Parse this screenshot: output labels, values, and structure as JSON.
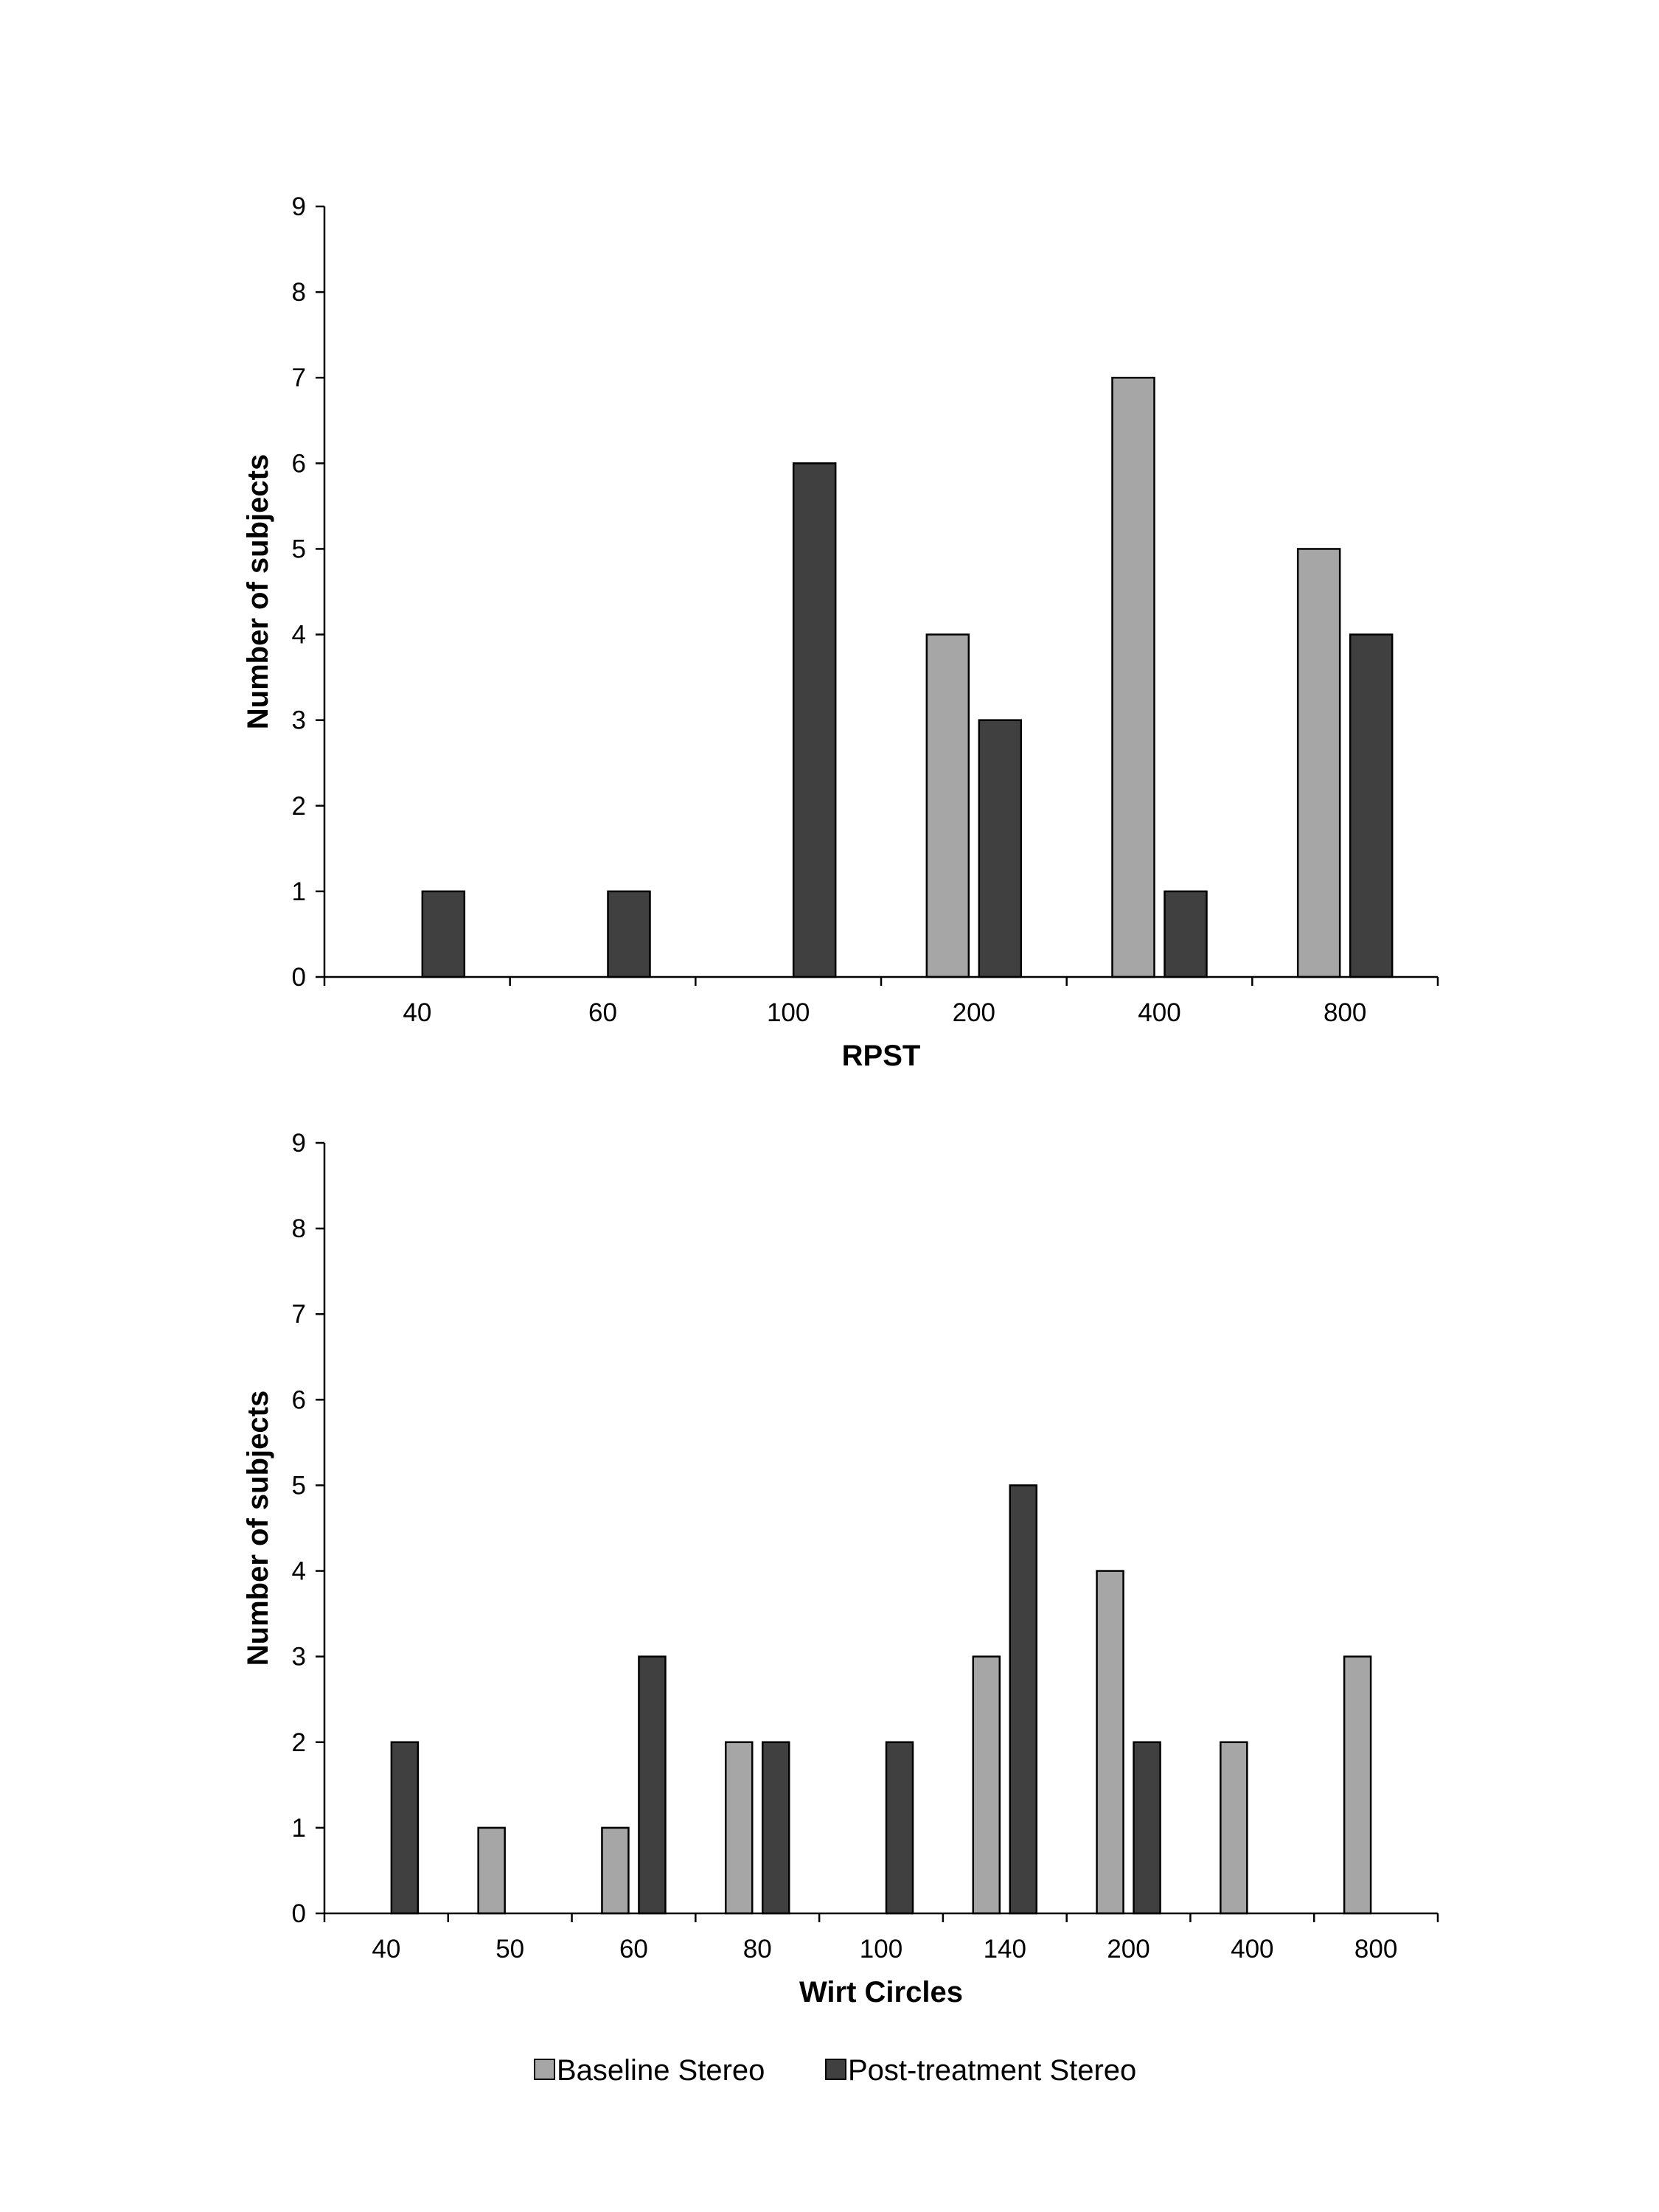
{
  "colors": {
    "baseline": "#a6a6a6",
    "post": "#404040",
    "axis": "#000000"
  },
  "legend": {
    "items": [
      {
        "label": "Baseline Stereo",
        "color": "#a6a6a6"
      },
      {
        "label": "Post-treatment Stereo",
        "color": "#404040"
      }
    ],
    "placement": "bottom"
  },
  "chart_data": [
    {
      "type": "bar",
      "title": "",
      "xlabel": "RPST",
      "ylabel": "Number of subjects",
      "ylim": [
        0,
        9
      ],
      "yticks": [
        "0",
        "1",
        "2",
        "3",
        "4",
        "5",
        "6",
        "7",
        "8",
        "9"
      ],
      "categories": [
        "40",
        "60",
        "100",
        "200",
        "400",
        "800"
      ],
      "series": [
        {
          "name": "Baseline Stereo",
          "values": [
            0,
            0,
            0,
            4,
            7,
            5
          ]
        },
        {
          "name": "Post-treatment Stereo",
          "values": [
            1,
            1,
            6,
            3,
            1,
            4
          ]
        }
      ],
      "grid": false
    },
    {
      "type": "bar",
      "title": "",
      "xlabel": "Wirt Circles",
      "ylabel": "Number of subjects",
      "ylim": [
        0,
        9
      ],
      "yticks": [
        "0",
        "1",
        "2",
        "3",
        "4",
        "5",
        "6",
        "7",
        "8",
        "9"
      ],
      "categories": [
        "40",
        "50",
        "60",
        "80",
        "100",
        "140",
        "200",
        "400",
        "800"
      ],
      "series": [
        {
          "name": "Baseline Stereo",
          "values": [
            0,
            1,
            1,
            2,
            0,
            3,
            4,
            2,
            3
          ]
        },
        {
          "name": "Post-treatment Stereo",
          "values": [
            2,
            0,
            3,
            2,
            2,
            5,
            2,
            0,
            0
          ]
        }
      ],
      "grid": false
    }
  ]
}
